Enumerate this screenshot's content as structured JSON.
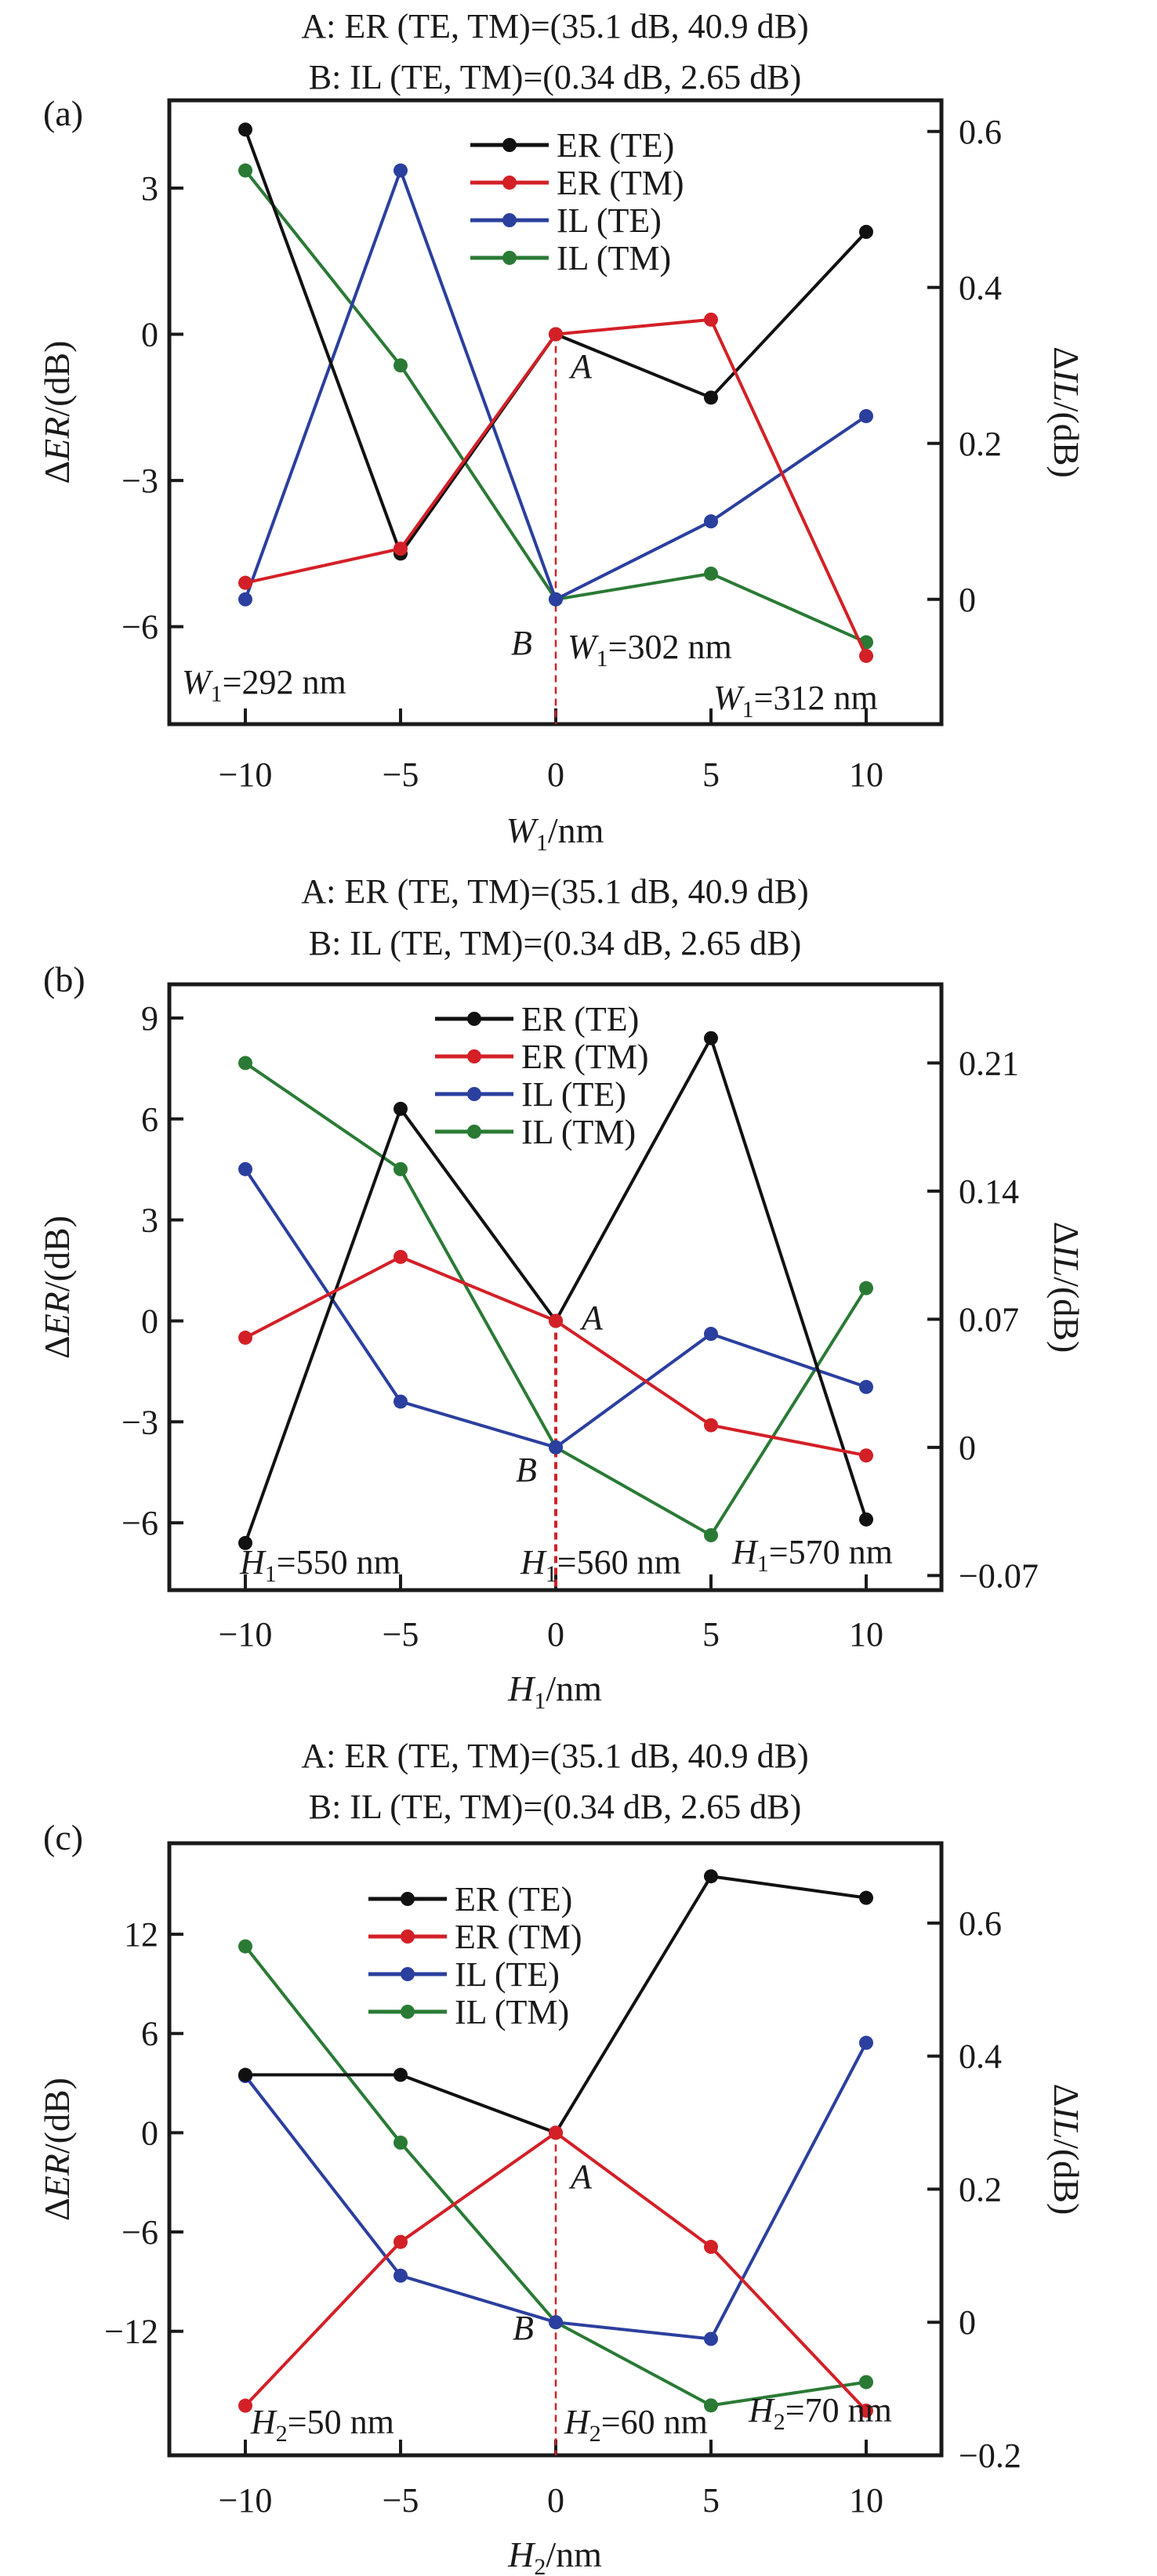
{
  "chart_data": [
    {
      "type": "line",
      "panel_label": "(a)",
      "title": [
        "A: ER (TE, TM)=(35.1 dB, 40.9 dB)",
        "B: IL (TE, TM)=(0.34 dB, 2.65 dB)"
      ],
      "xlabel": {
        "main": "W",
        "sub": "1",
        "unit": "/nm"
      },
      "ylabel": "ΔER/(dB)",
      "y2label": "ΔIL/(dB)",
      "x": [
        -10,
        -5,
        0,
        5,
        10
      ],
      "xticks": [
        "−10",
        "−5",
        "0",
        "5",
        "10"
      ],
      "ylim": [
        -8.0,
        4.8
      ],
      "yticks": [
        3,
        0,
        -3,
        -6
      ],
      "ytick_labels": [
        "3",
        "0",
        "−3",
        "−6"
      ],
      "y2lim": [
        -0.16,
        0.64
      ],
      "y2ticks": [
        0.6,
        0.4,
        0.2,
        0
      ],
      "y2tick_labels": [
        "0.6",
        "0.4",
        "0.2",
        "0"
      ],
      "legend_position": "top-center",
      "series": [
        {
          "name": "ER (TE)",
          "axis": "left",
          "color": "#111111",
          "values": [
            4.2,
            -4.5,
            0,
            -1.3,
            2.1
          ]
        },
        {
          "name": "ER (TM)",
          "axis": "left",
          "color": "#d32027",
          "values": [
            -5.1,
            -4.4,
            0,
            0.3,
            -6.6
          ]
        },
        {
          "name": "IL (TE)",
          "axis": "right",
          "color": "#2b3f9e",
          "values": [
            0.0,
            0.55,
            0.0,
            0.1,
            0.235
          ]
        },
        {
          "name": "IL (TM)",
          "axis": "right",
          "color": "#2a7a35",
          "values": [
            0.55,
            0.3,
            0.0,
            0.033,
            -0.055
          ]
        }
      ],
      "point_labels": [
        "A",
        "B"
      ],
      "annotations": [
        {
          "main": "W",
          "sub": "1",
          "text": "=292 nm"
        },
        {
          "main": "W",
          "sub": "1",
          "text": "=302 nm"
        },
        {
          "main": "W",
          "sub": "1",
          "text": "=312 nm"
        }
      ],
      "reference_line_x": 0
    },
    {
      "type": "line",
      "panel_label": "(b)",
      "title": [
        "A: ER (TE, TM)=(35.1 dB, 40.9 dB)",
        "B: IL (TE, TM)=(0.34 dB, 2.65 dB)"
      ],
      "xlabel": {
        "main": "H",
        "sub": "1",
        "unit": "/nm"
      },
      "ylabel": "ΔER/(dB)",
      "y2label": "ΔIL/(dB)",
      "x": [
        -10,
        -5,
        0,
        5,
        10
      ],
      "xticks": [
        "−10",
        "−5",
        "0",
        "5",
        "10"
      ],
      "ylim": [
        -8.0,
        10.0
      ],
      "yticks": [
        9,
        6,
        3,
        0,
        -3,
        -6
      ],
      "ytick_labels": [
        "9",
        "6",
        "3",
        "0",
        "−3",
        "−6"
      ],
      "y2lim": [
        -0.078,
        0.253
      ],
      "y2ticks": [
        0.21,
        0.14,
        0.07,
        0,
        -0.07
      ],
      "y2tick_labels": [
        "0.21",
        "0.14",
        "0.07",
        "0",
        "−0.07"
      ],
      "legend_position": "top-center",
      "series": [
        {
          "name": "ER (TE)",
          "axis": "left",
          "color": "#111111",
          "values": [
            -6.6,
            6.3,
            0,
            8.4,
            -5.9
          ]
        },
        {
          "name": "ER (TM)",
          "axis": "left",
          "color": "#d32027",
          "values": [
            -0.5,
            1.9,
            0,
            -3.1,
            -4.0
          ]
        },
        {
          "name": "IL (TE)",
          "axis": "right",
          "color": "#2b3f9e",
          "values": [
            0.152,
            0.025,
            0.0,
            0.062,
            0.033
          ]
        },
        {
          "name": "IL (TM)",
          "axis": "right",
          "color": "#2a7a35",
          "values": [
            0.21,
            0.152,
            0.0,
            -0.048,
            0.087
          ]
        }
      ],
      "point_labels": [
        "A",
        "B"
      ],
      "annotations": [
        {
          "main": "H",
          "sub": "1",
          "text": "=550 nm"
        },
        {
          "main": "H",
          "sub": "1",
          "text": "=560 nm"
        },
        {
          "main": "H",
          "sub": "1",
          "text": "=570 nm"
        }
      ],
      "reference_line_x": 0
    },
    {
      "type": "line",
      "panel_label": "(c)",
      "title": [
        "A: ER (TE, TM)=(35.1 dB, 40.9 dB)",
        "B: IL (TE, TM)=(0.34 dB, 2.65 dB)"
      ],
      "xlabel": {
        "main": "H",
        "sub": "2",
        "unit": "/nm"
      },
      "ylabel": "ΔER/(dB)",
      "y2label": "ΔIL/(dB)",
      "x": [
        -10,
        -5,
        0,
        5,
        10
      ],
      "xticks": [
        "−10",
        "−5",
        "0",
        "5",
        "10"
      ],
      "ylim": [
        -19.5,
        17.5
      ],
      "yticks": [
        12,
        6,
        0,
        -6,
        -12
      ],
      "ytick_labels": [
        "12",
        "6",
        "0",
        "−6",
        "−12"
      ],
      "y2lim": [
        -0.2,
        0.72
      ],
      "y2ticks": [
        0.6,
        0.4,
        0.2,
        0,
        -0.2
      ],
      "y2tick_labels": [
        "0.6",
        "0.4",
        "0.2",
        "0",
        "−0.2"
      ],
      "legend_position": "top-center",
      "series": [
        {
          "name": "ER (TE)",
          "axis": "left",
          "color": "#111111",
          "values": [
            3.5,
            3.5,
            0,
            15.5,
            14.2
          ]
        },
        {
          "name": "ER (TM)",
          "axis": "left",
          "color": "#d32027",
          "values": [
            -16.5,
            -6.6,
            0,
            -6.9,
            -16.8
          ]
        },
        {
          "name": "IL (TE)",
          "axis": "right",
          "color": "#2b3f9e",
          "values": [
            0.37,
            0.07,
            0.0,
            -0.025,
            0.42
          ]
        },
        {
          "name": "IL (TM)",
          "axis": "right",
          "color": "#2a7a35",
          "values": [
            0.565,
            0.27,
            0.0,
            -0.125,
            -0.09
          ]
        }
      ],
      "point_labels": [
        "A",
        "B"
      ],
      "annotations": [
        {
          "main": "H",
          "sub": "2",
          "text": "=50 nm"
        },
        {
          "main": "H",
          "sub": "2",
          "text": "=60 nm"
        },
        {
          "main": "H",
          "sub": "2",
          "text": "=70 nm"
        }
      ],
      "reference_line_x": 0
    }
  ]
}
